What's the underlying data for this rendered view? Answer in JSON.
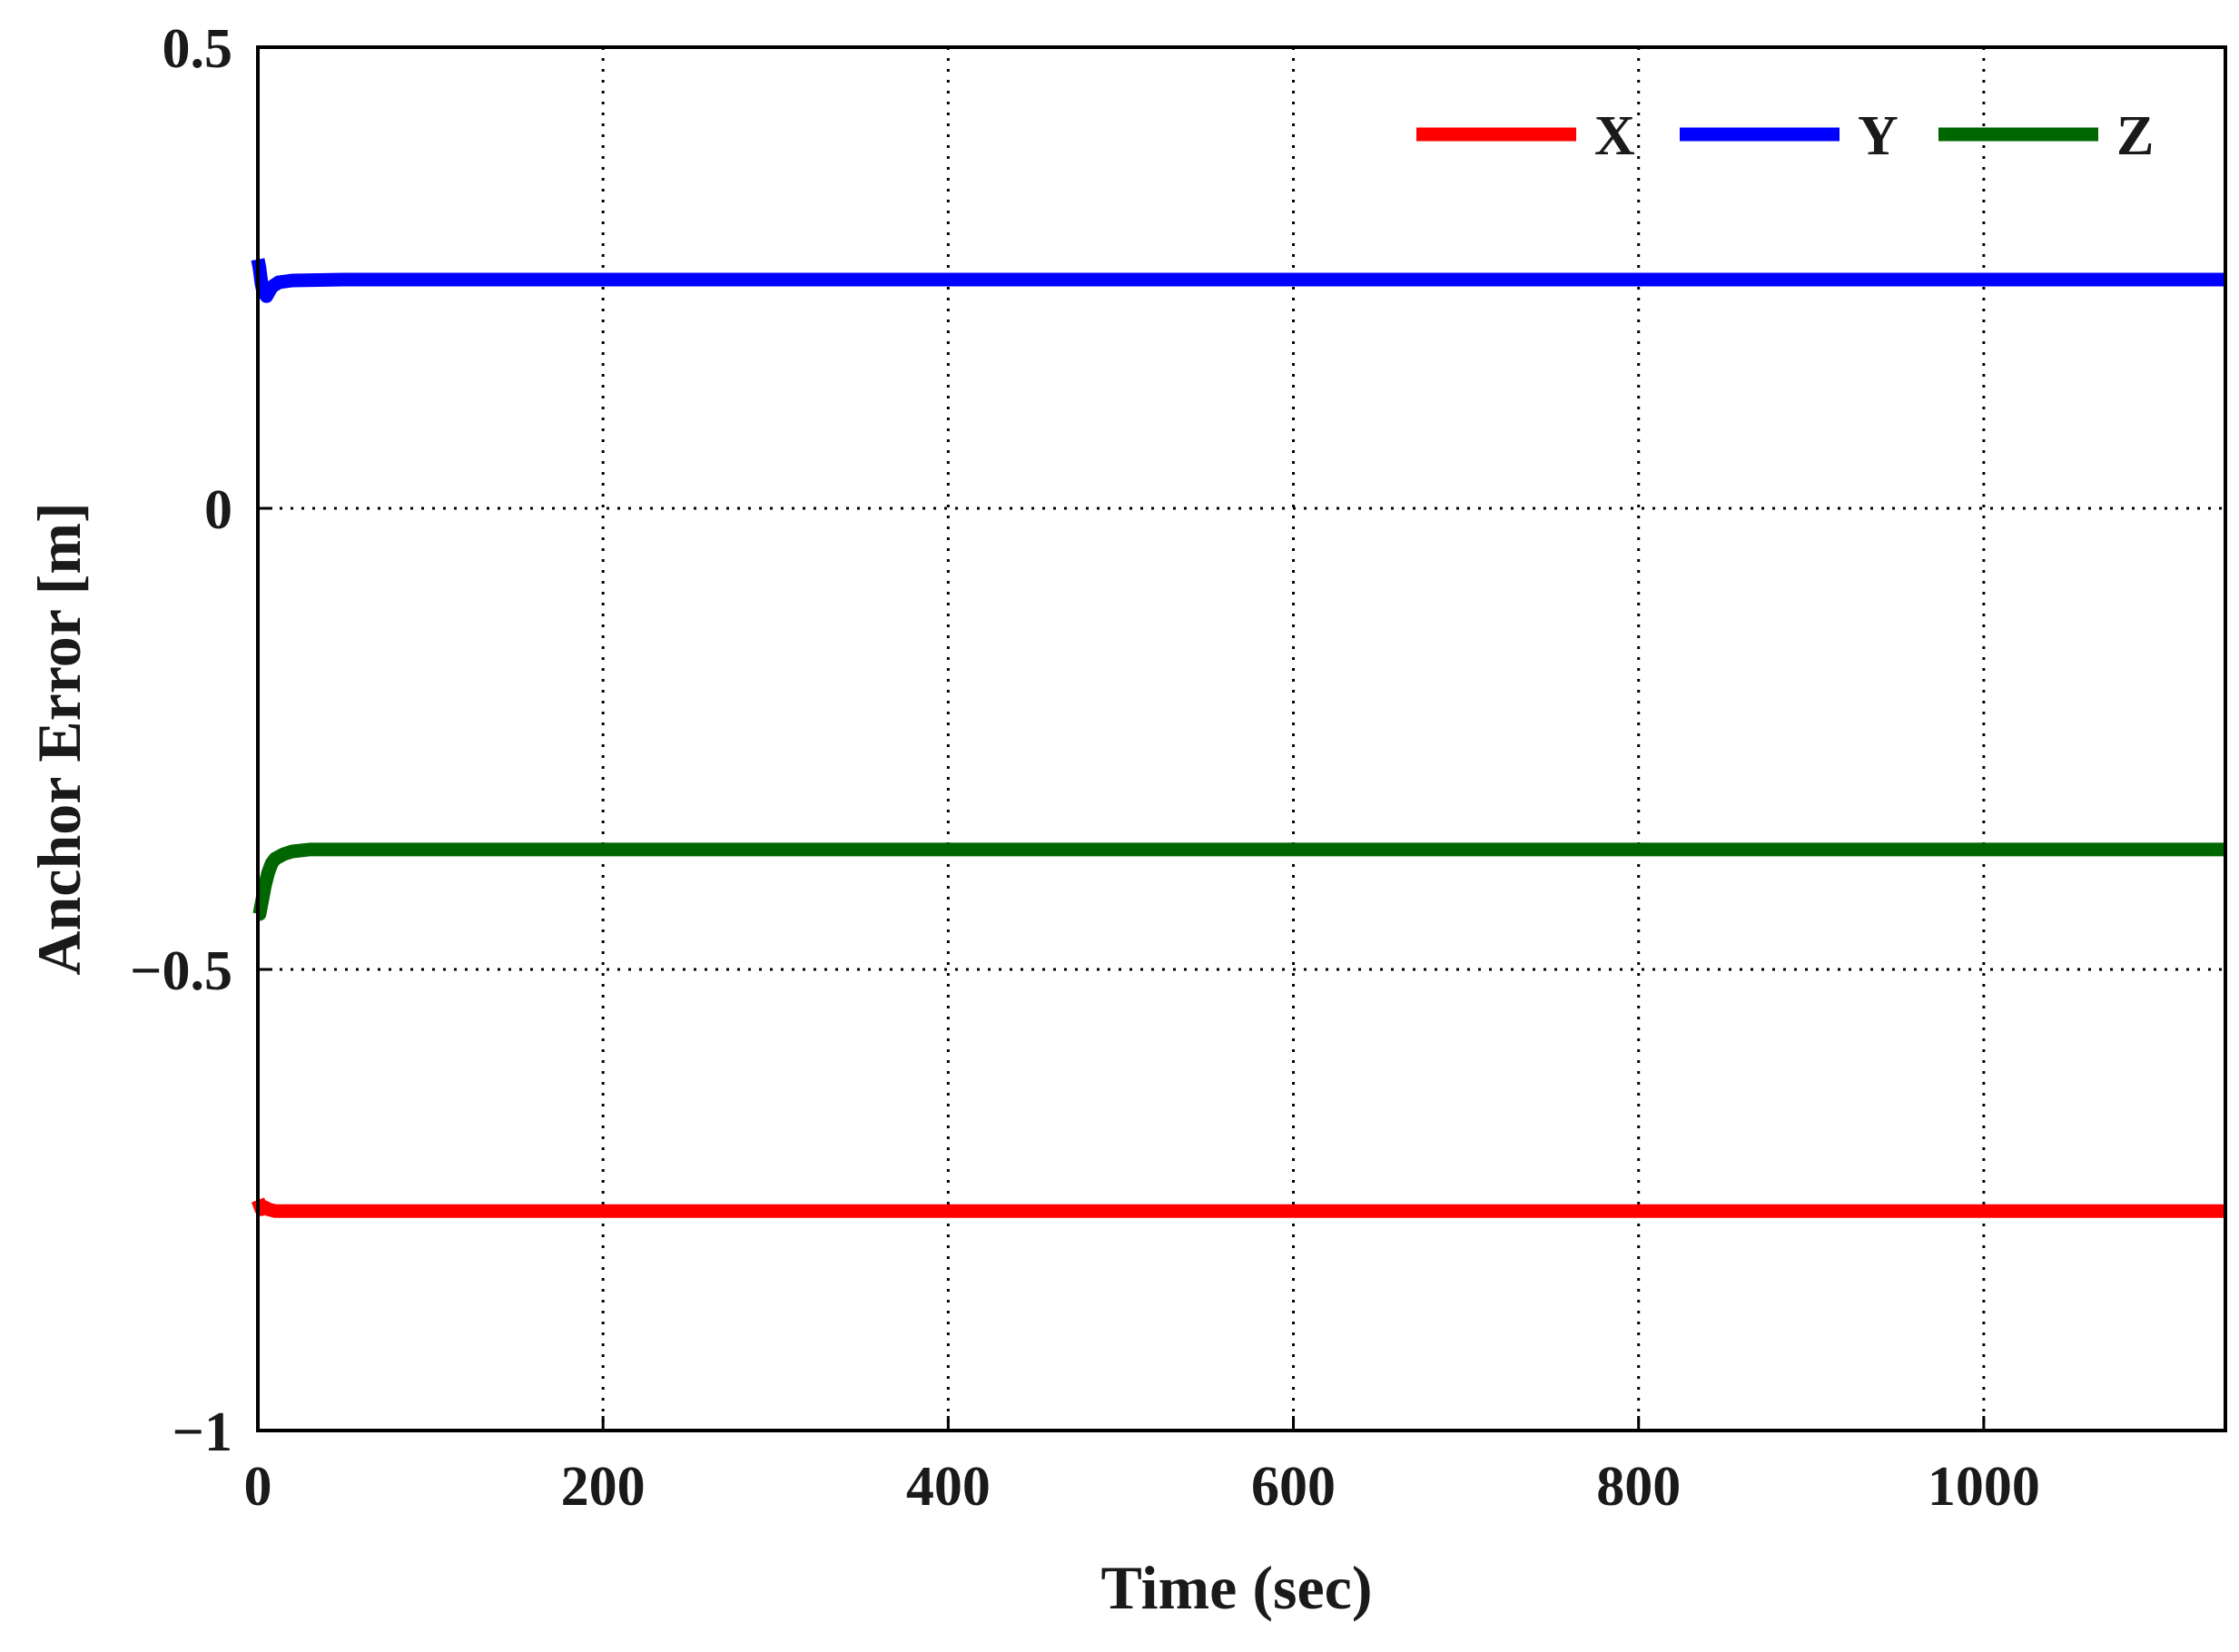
{
  "chart_data": {
    "type": "line",
    "title": "",
    "xlabel": "Time (sec)",
    "ylabel": "Anchor Error [m]",
    "xlim": [
      0,
      1140
    ],
    "ylim": [
      -1,
      0.5
    ],
    "xticks": [
      0,
      200,
      400,
      600,
      800,
      1000
    ],
    "xtick_labels": [
      "0",
      "200",
      "400",
      "600",
      "800",
      "1000"
    ],
    "yticks": [
      -1,
      -0.5,
      0,
      0.5
    ],
    "ytick_labels": [
      "−1",
      "−0.5",
      "0",
      "0.5"
    ],
    "grid": true,
    "legend_position": "top-right",
    "series": [
      {
        "name": "X",
        "color": "#ff0000",
        "x": [
          0,
          1,
          2,
          4,
          6,
          10,
          20,
          50,
          100,
          200,
          400,
          600,
          800,
          1000,
          1140
        ],
        "values": [
          -0.75,
          -0.755,
          -0.76,
          -0.758,
          -0.76,
          -0.762,
          -0.762,
          -0.762,
          -0.762,
          -0.762,
          -0.762,
          -0.762,
          -0.762,
          -0.762,
          -0.762
        ]
      },
      {
        "name": "Y",
        "color": "#0000ff",
        "x": [
          0,
          1,
          2,
          3,
          5,
          8,
          12,
          20,
          50,
          100,
          200,
          400,
          600,
          800,
          1000,
          1140
        ],
        "values": [
          0.27,
          0.26,
          0.245,
          0.235,
          0.23,
          0.24,
          0.245,
          0.247,
          0.248,
          0.248,
          0.248,
          0.248,
          0.248,
          0.248,
          0.248,
          0.248
        ]
      },
      {
        "name": "Z",
        "color": "#006600",
        "x": [
          0,
          1,
          2,
          4,
          6,
          8,
          10,
          15,
          20,
          30,
          50,
          100,
          200,
          400,
          600,
          800,
          1000,
          1140
        ],
        "values": [
          -0.44,
          -0.44,
          -0.43,
          -0.41,
          -0.395,
          -0.385,
          -0.38,
          -0.375,
          -0.372,
          -0.37,
          -0.37,
          -0.37,
          -0.37,
          -0.37,
          -0.37,
          -0.37,
          -0.37,
          -0.37
        ]
      }
    ]
  }
}
